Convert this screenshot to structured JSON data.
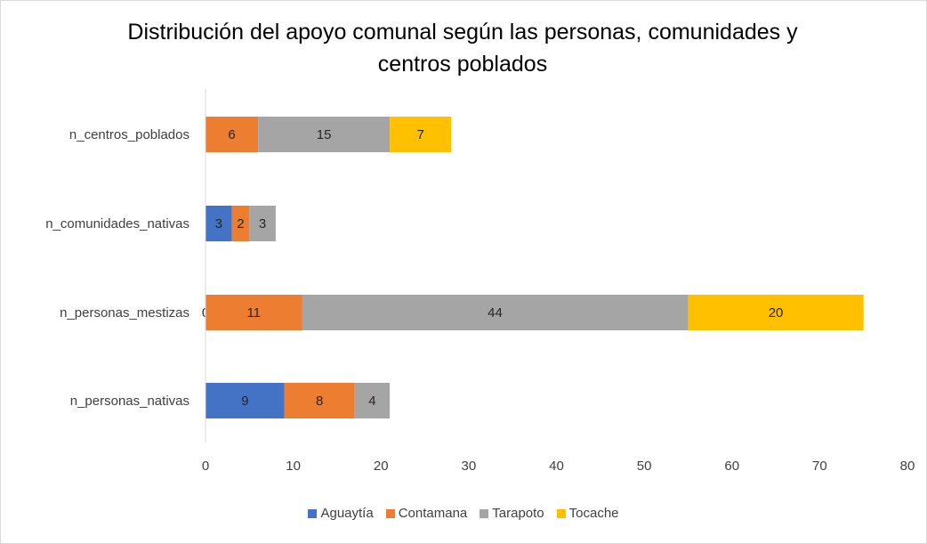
{
  "chart_data": {
    "type": "bar",
    "orientation": "horizontal",
    "stacked": true,
    "title": "Distribución del apoyo comunal según las personas, comunidades y centros poblados",
    "title_lines": [
      "Distribución del apoyo comunal según las personas, comunidades y",
      "centros poblados"
    ],
    "categories": [
      "n_centros_poblados",
      "n_comunidades_nativas",
      "n_personas_mestizas",
      "n_personas_nativas"
    ],
    "series": [
      {
        "name": "Aguaytía",
        "color": "#4472c4",
        "values": [
          0,
          3,
          0,
          9
        ],
        "labels": [
          "",
          "3",
          "0",
          "9"
        ]
      },
      {
        "name": "Contamana",
        "color": "#ed7d31",
        "values": [
          6,
          2,
          11,
          8
        ],
        "labels": [
          "6",
          "2",
          "11",
          "8"
        ]
      },
      {
        "name": "Tarapoto",
        "color": "#a5a5a5",
        "values": [
          15,
          3,
          44,
          4
        ],
        "labels": [
          "15",
          "3",
          "44",
          "4"
        ]
      },
      {
        "name": "Tocache",
        "color": "#ffc000",
        "values": [
          7,
          0,
          20,
          0
        ],
        "labels": [
          "7",
          "",
          "20",
          ""
        ]
      }
    ],
    "xlim": [
      0,
      80
    ],
    "xticks": [
      "0",
      "10",
      "20",
      "30",
      "40",
      "50",
      "60",
      "70",
      "80"
    ],
    "grid": false,
    "legend_position": "bottom"
  }
}
